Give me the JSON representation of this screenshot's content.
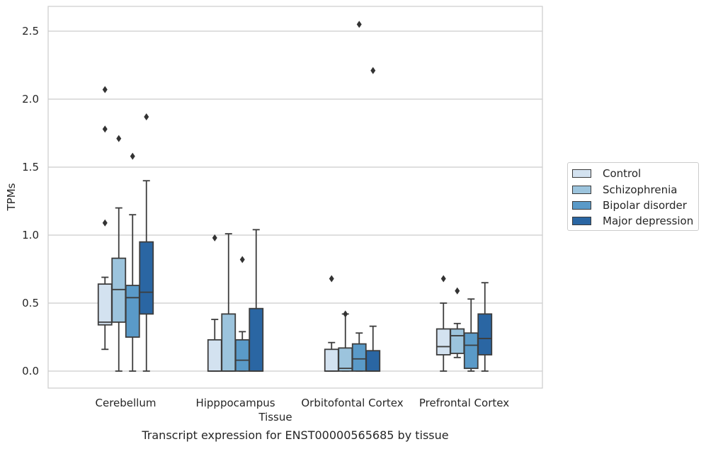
{
  "chart_data": {
    "type": "boxplot",
    "title": "",
    "caption": "Transcript expression for ENST00000565685 by tissue",
    "xlabel": "Tissue",
    "ylabel": "TPMs",
    "ylim": [
      -0.12,
      2.68
    ],
    "yticks": [
      0.0,
      0.5,
      1.0,
      1.5,
      2.0,
      2.5
    ],
    "ytick_labels": [
      "0.0",
      "0.5",
      "1.0",
      "1.5",
      "2.0",
      "2.5"
    ],
    "grid": "horizontal",
    "legend_position": "right",
    "categories": [
      "Cerebellum",
      "Hipppocampus",
      "Orbitofontal Cortex",
      "Prefrontal Cortex"
    ],
    "series": [
      {
        "name": "Control",
        "color": "#d3e2f0",
        "boxes": [
          {
            "whislo": 0.16,
            "q1": 0.34,
            "med": 0.36,
            "q3": 0.64,
            "whishi": 0.69,
            "fliers": [
              1.09,
              1.78,
              2.07
            ]
          },
          {
            "whislo": 0.0,
            "q1": 0.0,
            "med": 0.0,
            "q3": 0.23,
            "whishi": 0.38,
            "fliers": [
              0.98
            ]
          },
          {
            "whislo": 0.0,
            "q1": 0.0,
            "med": 0.0,
            "q3": 0.16,
            "whishi": 0.21,
            "fliers": [
              0.68
            ]
          },
          {
            "whislo": 0.0,
            "q1": 0.12,
            "med": 0.18,
            "q3": 0.31,
            "whishi": 0.5,
            "fliers": [
              0.68
            ]
          }
        ]
      },
      {
        "name": "Schizophrenia",
        "color": "#9cc4dd",
        "boxes": [
          {
            "whislo": 0.0,
            "q1": 0.36,
            "med": 0.6,
            "q3": 0.83,
            "whishi": 1.2,
            "fliers": [
              1.71
            ]
          },
          {
            "whislo": 0.0,
            "q1": 0.0,
            "med": 0.0,
            "q3": 0.42,
            "whishi": 1.01,
            "fliers": []
          },
          {
            "whislo": 0.0,
            "q1": 0.0,
            "med": 0.02,
            "q3": 0.17,
            "whishi": 0.42,
            "fliers": [
              0.42
            ]
          },
          {
            "whislo": 0.1,
            "q1": 0.13,
            "med": 0.26,
            "q3": 0.31,
            "whishi": 0.35,
            "fliers": [
              0.59
            ]
          }
        ]
      },
      {
        "name": "Bipolar disorder",
        "color": "#5a9ac8",
        "boxes": [
          {
            "whislo": 0.0,
            "q1": 0.25,
            "med": 0.54,
            "q3": 0.63,
            "whishi": 1.15,
            "fliers": [
              1.58
            ]
          },
          {
            "whislo": 0.0,
            "q1": 0.0,
            "med": 0.08,
            "q3": 0.23,
            "whishi": 0.29,
            "fliers": [
              0.82
            ]
          },
          {
            "whislo": 0.0,
            "q1": 0.0,
            "med": 0.09,
            "q3": 0.2,
            "whishi": 0.28,
            "fliers": [
              2.55
            ]
          },
          {
            "whislo": 0.0,
            "q1": 0.02,
            "med": 0.19,
            "q3": 0.28,
            "whishi": 0.53,
            "fliers": []
          }
        ]
      },
      {
        "name": "Major depression",
        "color": "#2a66a3",
        "boxes": [
          {
            "whislo": 0.0,
            "q1": 0.42,
            "med": 0.58,
            "q3": 0.95,
            "whishi": 1.4,
            "fliers": [
              1.87
            ]
          },
          {
            "whislo": 0.0,
            "q1": 0.0,
            "med": 0.0,
            "q3": 0.46,
            "whishi": 1.04,
            "fliers": []
          },
          {
            "whislo": 0.0,
            "q1": 0.0,
            "med": 0.0,
            "q3": 0.15,
            "whishi": 0.33,
            "fliers": [
              2.21
            ]
          },
          {
            "whislo": 0.0,
            "q1": 0.12,
            "med": 0.24,
            "q3": 0.42,
            "whishi": 0.65,
            "fliers": []
          }
        ]
      }
    ]
  }
}
